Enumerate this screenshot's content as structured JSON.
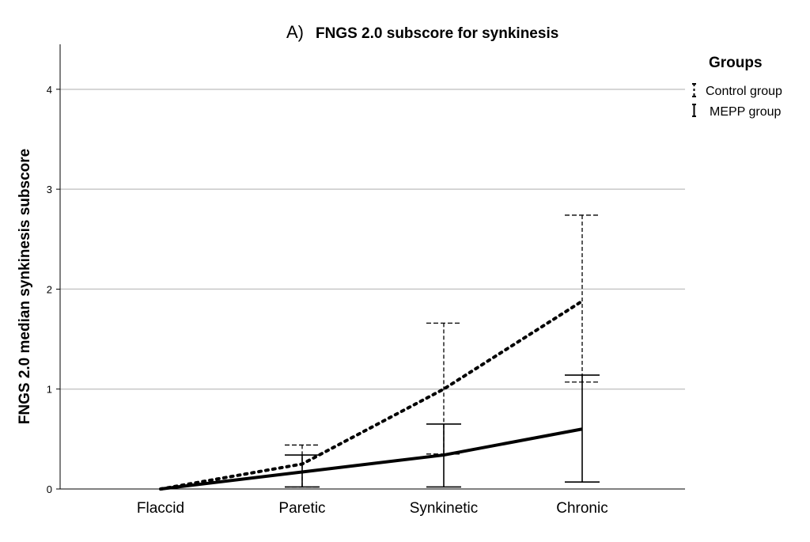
{
  "chart_data": {
    "type": "line",
    "title_prefix": "A)",
    "title": "FNGS 2.0 subscore for synkinesis",
    "xlabel": "",
    "ylabel": "FNGS 2.0 median synkinesis subscore",
    "categories": [
      "Flaccid",
      "Paretic",
      "Synkinetic",
      "Chronic"
    ],
    "ylim": [
      0,
      4.45
    ],
    "yticks": [
      0,
      1,
      2,
      3,
      4
    ],
    "grid": true,
    "legend": {
      "title": "Groups",
      "placement": "right",
      "entries": [
        "Control group",
        "MEPP group"
      ]
    },
    "series": [
      {
        "name": "Control group",
        "style": "dotted",
        "values": [
          0,
          0.25,
          1.0,
          1.88
        ],
        "error_low": [
          null,
          0.02,
          0.35,
          1.07
        ],
        "error_high": [
          null,
          0.44,
          1.66,
          2.74
        ]
      },
      {
        "name": "MEPP group",
        "style": "solid",
        "values": [
          0,
          0.17,
          0.34,
          0.6
        ],
        "error_low": [
          null,
          0.02,
          0.02,
          0.07
        ],
        "error_high": [
          null,
          0.34,
          0.65,
          1.14
        ]
      }
    ],
    "colors": {
      "lines": "#000000",
      "grid": "#c8c8c8",
      "background": "#ffffff"
    }
  }
}
